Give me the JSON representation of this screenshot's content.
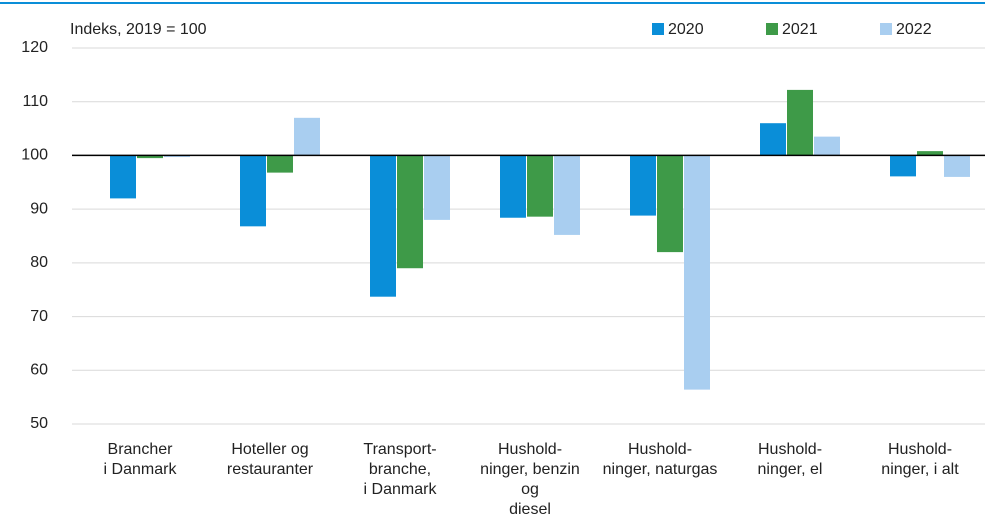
{
  "chart_data": {
    "type": "bar",
    "baseline": 100,
    "ylabel": "Indeks, 2019 = 100",
    "categories": [
      "Brancher\ni Danmark",
      "Hoteller og\nrestauranter",
      "Transport-\nbranche,\ni Danmark",
      "Hushold-\nninger, benzin\nog\ndiesel",
      "Hushold-\nninger, naturgas",
      "Hushold-\nninger, el",
      "Hushold-\nninger, i alt"
    ],
    "series": [
      {
        "name": "2020",
        "color": "#0a8ed8",
        "values": [
          92,
          86.8,
          73.7,
          88.4,
          88.8,
          106,
          96.1
        ]
      },
      {
        "name": "2021",
        "color": "#3e9a48",
        "values": [
          99.5,
          96.8,
          79,
          88.6,
          82,
          112.2,
          100.8
        ]
      },
      {
        "name": "2022",
        "color": "#a9cef0",
        "values": [
          99.7,
          107,
          88,
          85.2,
          56.4,
          103.5,
          96
        ]
      }
    ],
    "ylim": [
      50,
      120
    ],
    "yticks": [
      50,
      60,
      70,
      80,
      90,
      100,
      110,
      120
    ],
    "grid": true,
    "legend": "top-right"
  }
}
